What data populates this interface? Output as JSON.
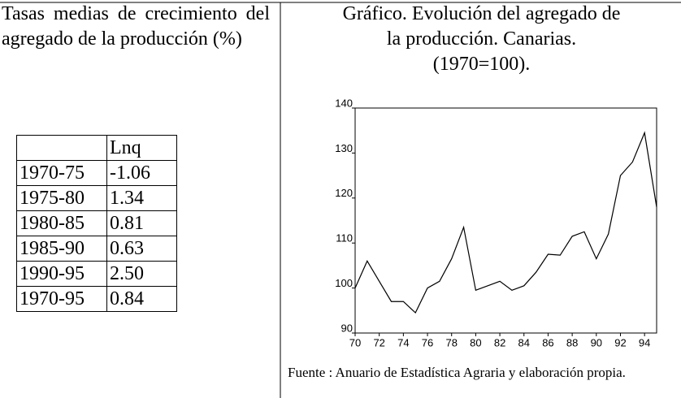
{
  "left": {
    "heading": "Tasas medias de crecimiento del agregado de la producción (%)"
  },
  "table": {
    "header": "Lnq",
    "rows": [
      [
        "1970-75",
        "-1.06"
      ],
      [
        "1975-80",
        "1.34"
      ],
      [
        "1980-85",
        "0.81"
      ],
      [
        "1985-90",
        "0.63"
      ],
      [
        "1990-95",
        "2.50"
      ],
      [
        "1970-95",
        "0.84"
      ]
    ]
  },
  "chart": {
    "type": "line",
    "title_lines": [
      "Gráfico. Evolución del agregado de",
      "la producción. Canarias.",
      "(1970=100)."
    ],
    "x": [
      70,
      71,
      72,
      73,
      74,
      75,
      76,
      77,
      78,
      79,
      80,
      81,
      82,
      83,
      84,
      85,
      86,
      87,
      88,
      89,
      90,
      91,
      92,
      93,
      94,
      95
    ],
    "values": [
      100,
      106,
      101.5,
      97,
      97,
      94.5,
      100,
      101.5,
      106.5,
      113.5,
      99.5,
      100.5,
      101.5,
      99.5,
      100.5,
      103.5,
      107.5,
      107.3,
      111.5,
      112.5,
      106.5,
      112,
      125,
      128,
      134.5,
      118
    ],
    "color": "#000000",
    "xlim": [
      70,
      95
    ],
    "xticks": [
      70,
      72,
      74,
      76,
      78,
      80,
      82,
      84,
      86,
      88,
      90,
      92,
      94
    ],
    "ylim": [
      90,
      140
    ],
    "yticks": [
      90,
      100,
      110,
      120,
      130,
      140
    ],
    "source": "Fuente : Anuario de Estadística Agraria y elaboración propia."
  }
}
